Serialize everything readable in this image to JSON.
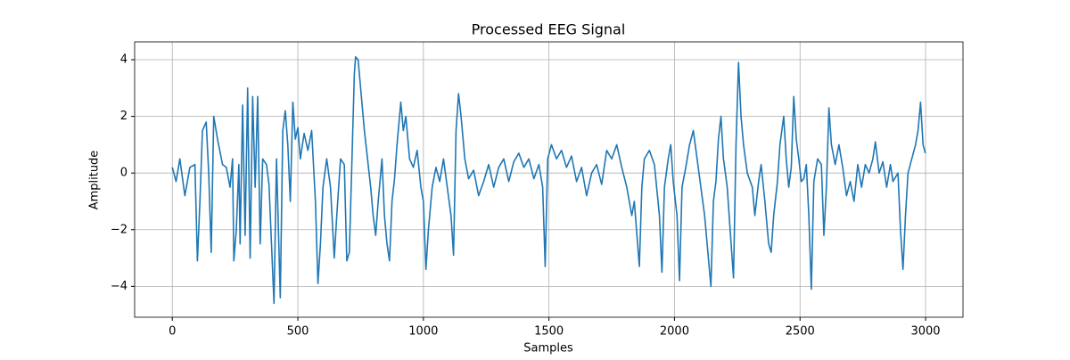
{
  "chart_data": {
    "type": "line",
    "title": "Processed EEG Signal",
    "x_label": "Samples",
    "y_label": "Amplitude",
    "color": "#1f77b4",
    "grid": true,
    "xlim": [
      -150,
      3149
    ],
    "ylim": [
      -5.09,
      4.63
    ],
    "xticks": [
      0,
      500,
      1000,
      1500,
      2000,
      2500,
      3000
    ],
    "yticks": [
      {
        "value": -4,
        "label": "−4"
      },
      {
        "value": -2,
        "label": "−2"
      },
      0,
      2,
      4
    ],
    "x": [
      0,
      15,
      30,
      50,
      70,
      90,
      100,
      110,
      120,
      135,
      145,
      155,
      165,
      180,
      200,
      215,
      230,
      240,
      245,
      255,
      265,
      270,
      280,
      290,
      300,
      310,
      320,
      330,
      340,
      350,
      360,
      375,
      385,
      395,
      405,
      415,
      430,
      440,
      450,
      460,
      470,
      480,
      490,
      500,
      510,
      525,
      540,
      555,
      570,
      580,
      590,
      600,
      615,
      630,
      645,
      655,
      670,
      685,
      695,
      705,
      715,
      725,
      730,
      740,
      750,
      765,
      780,
      790,
      800,
      810,
      820,
      835,
      845,
      855,
      865,
      875,
      885,
      895,
      910,
      920,
      930,
      945,
      960,
      975,
      990,
      1000,
      1010,
      1020,
      1035,
      1050,
      1065,
      1080,
      1095,
      1110,
      1120,
      1130,
      1140,
      1150,
      1165,
      1180,
      1200,
      1220,
      1240,
      1260,
      1280,
      1300,
      1320,
      1340,
      1360,
      1380,
      1400,
      1420,
      1440,
      1460,
      1475,
      1485,
      1495,
      1510,
      1530,
      1550,
      1570,
      1590,
      1610,
      1630,
      1650,
      1670,
      1690,
      1710,
      1730,
      1750,
      1770,
      1790,
      1810,
      1830,
      1840,
      1860,
      1870,
      1880,
      1900,
      1920,
      1940,
      1950,
      1960,
      1975,
      1985,
      1995,
      2010,
      2020,
      2030,
      2045,
      2060,
      2075,
      2090,
      2105,
      2120,
      2130,
      2145,
      2155,
      2165,
      2175,
      2185,
      2195,
      2210,
      2220,
      2235,
      2245,
      2255,
      2265,
      2275,
      2290,
      2310,
      2320,
      2335,
      2345,
      2360,
      2375,
      2385,
      2395,
      2410,
      2420,
      2435,
      2445,
      2455,
      2465,
      2475,
      2485,
      2495,
      2505,
      2515,
      2525,
      2535,
      2545,
      2555,
      2570,
      2585,
      2595,
      2605,
      2615,
      2625,
      2640,
      2655,
      2670,
      2685,
      2700,
      2715,
      2730,
      2745,
      2760,
      2775,
      2790,
      2800,
      2815,
      2830,
      2845,
      2860,
      2870,
      2890,
      2900,
      2910,
      2920,
      2930,
      2945,
      2960,
      2970,
      2980,
      2990,
      2999
    ],
    "values": [
      0.2,
      -0.3,
      0.5,
      -0.8,
      0.2,
      0.3,
      -3.1,
      -1,
      1.5,
      1.8,
      0,
      -2.8,
      2.0,
      1.2,
      0.3,
      0.2,
      -0.5,
      0.5,
      -3.1,
      -2,
      0.3,
      -2.5,
      2.4,
      -2.2,
      3.0,
      -3.0,
      2.7,
      -0.5,
      2.7,
      -2.5,
      0.5,
      0.3,
      -0.4,
      -2.5,
      -4.6,
      0.5,
      -4.4,
      1.5,
      2.2,
      1.0,
      -1.0,
      2.5,
      1.2,
      1.6,
      0.5,
      1.4,
      0.8,
      1.5,
      -1.0,
      -3.9,
      -2.5,
      -0.5,
      0.5,
      -0.5,
      -3.0,
      -1.5,
      0.5,
      0.3,
      -3.1,
      -2.8,
      0.3,
      3.5,
      4.1,
      4.0,
      3.0,
      1.5,
      0.3,
      -0.5,
      -1.5,
      -2.2,
      -1.0,
      0.5,
      -1.5,
      -2.5,
      -3.1,
      -1.0,
      -0.2,
      1.0,
      2.5,
      1.5,
      2.0,
      0.5,
      0.2,
      0.8,
      -0.5,
      -1.0,
      -3.4,
      -2.0,
      -0.5,
      0.2,
      -0.3,
      0.5,
      -0.5,
      -1.5,
      -2.9,
      1.5,
      2.8,
      2.0,
      0.5,
      -0.2,
      0.1,
      -0.8,
      -0.3,
      0.3,
      -0.5,
      0.2,
      0.5,
      -0.3,
      0.4,
      0.7,
      0.2,
      0.5,
      -0.2,
      0.3,
      -0.5,
      -3.3,
      0.5,
      1.0,
      0.5,
      0.8,
      0.2,
      0.6,
      -0.3,
      0.2,
      -0.8,
      0.0,
      0.3,
      -0.4,
      0.8,
      0.5,
      1.0,
      0.2,
      -0.5,
      -1.5,
      -1.0,
      -3.3,
      -0.5,
      0.5,
      0.8,
      0.3,
      -1.5,
      -3.5,
      -0.5,
      0.5,
      1.0,
      -0.3,
      -1.5,
      -3.8,
      -0.5,
      0.2,
      1.0,
      1.5,
      0.5,
      -0.5,
      -1.5,
      -2.5,
      -4.0,
      -1.0,
      -0.3,
      1.2,
      2.0,
      0.5,
      -0.5,
      -1.8,
      -3.7,
      1.0,
      3.9,
      2.0,
      1.0,
      0.0,
      -0.5,
      -1.5,
      -0.3,
      0.3,
      -1.0,
      -2.5,
      -2.8,
      -1.5,
      -0.3,
      1.0,
      2.0,
      0.5,
      -0.5,
      0.2,
      2.7,
      1.2,
      0.5,
      -0.3,
      -0.2,
      0.3,
      -1.5,
      -4.1,
      -0.3,
      0.5,
      0.3,
      -2.2,
      -0.5,
      2.3,
      1.0,
      0.3,
      1.0,
      0.2,
      -0.8,
      -0.3,
      -1.0,
      0.3,
      -0.5,
      0.3,
      0.0,
      0.5,
      1.1,
      0.0,
      0.4,
      -0.5,
      0.3,
      -0.3,
      0.0,
      -2.0,
      -3.4,
      -1.5,
      0.0,
      0.5,
      1.0,
      1.5,
      2.5,
      1.0,
      0.7
    ]
  }
}
